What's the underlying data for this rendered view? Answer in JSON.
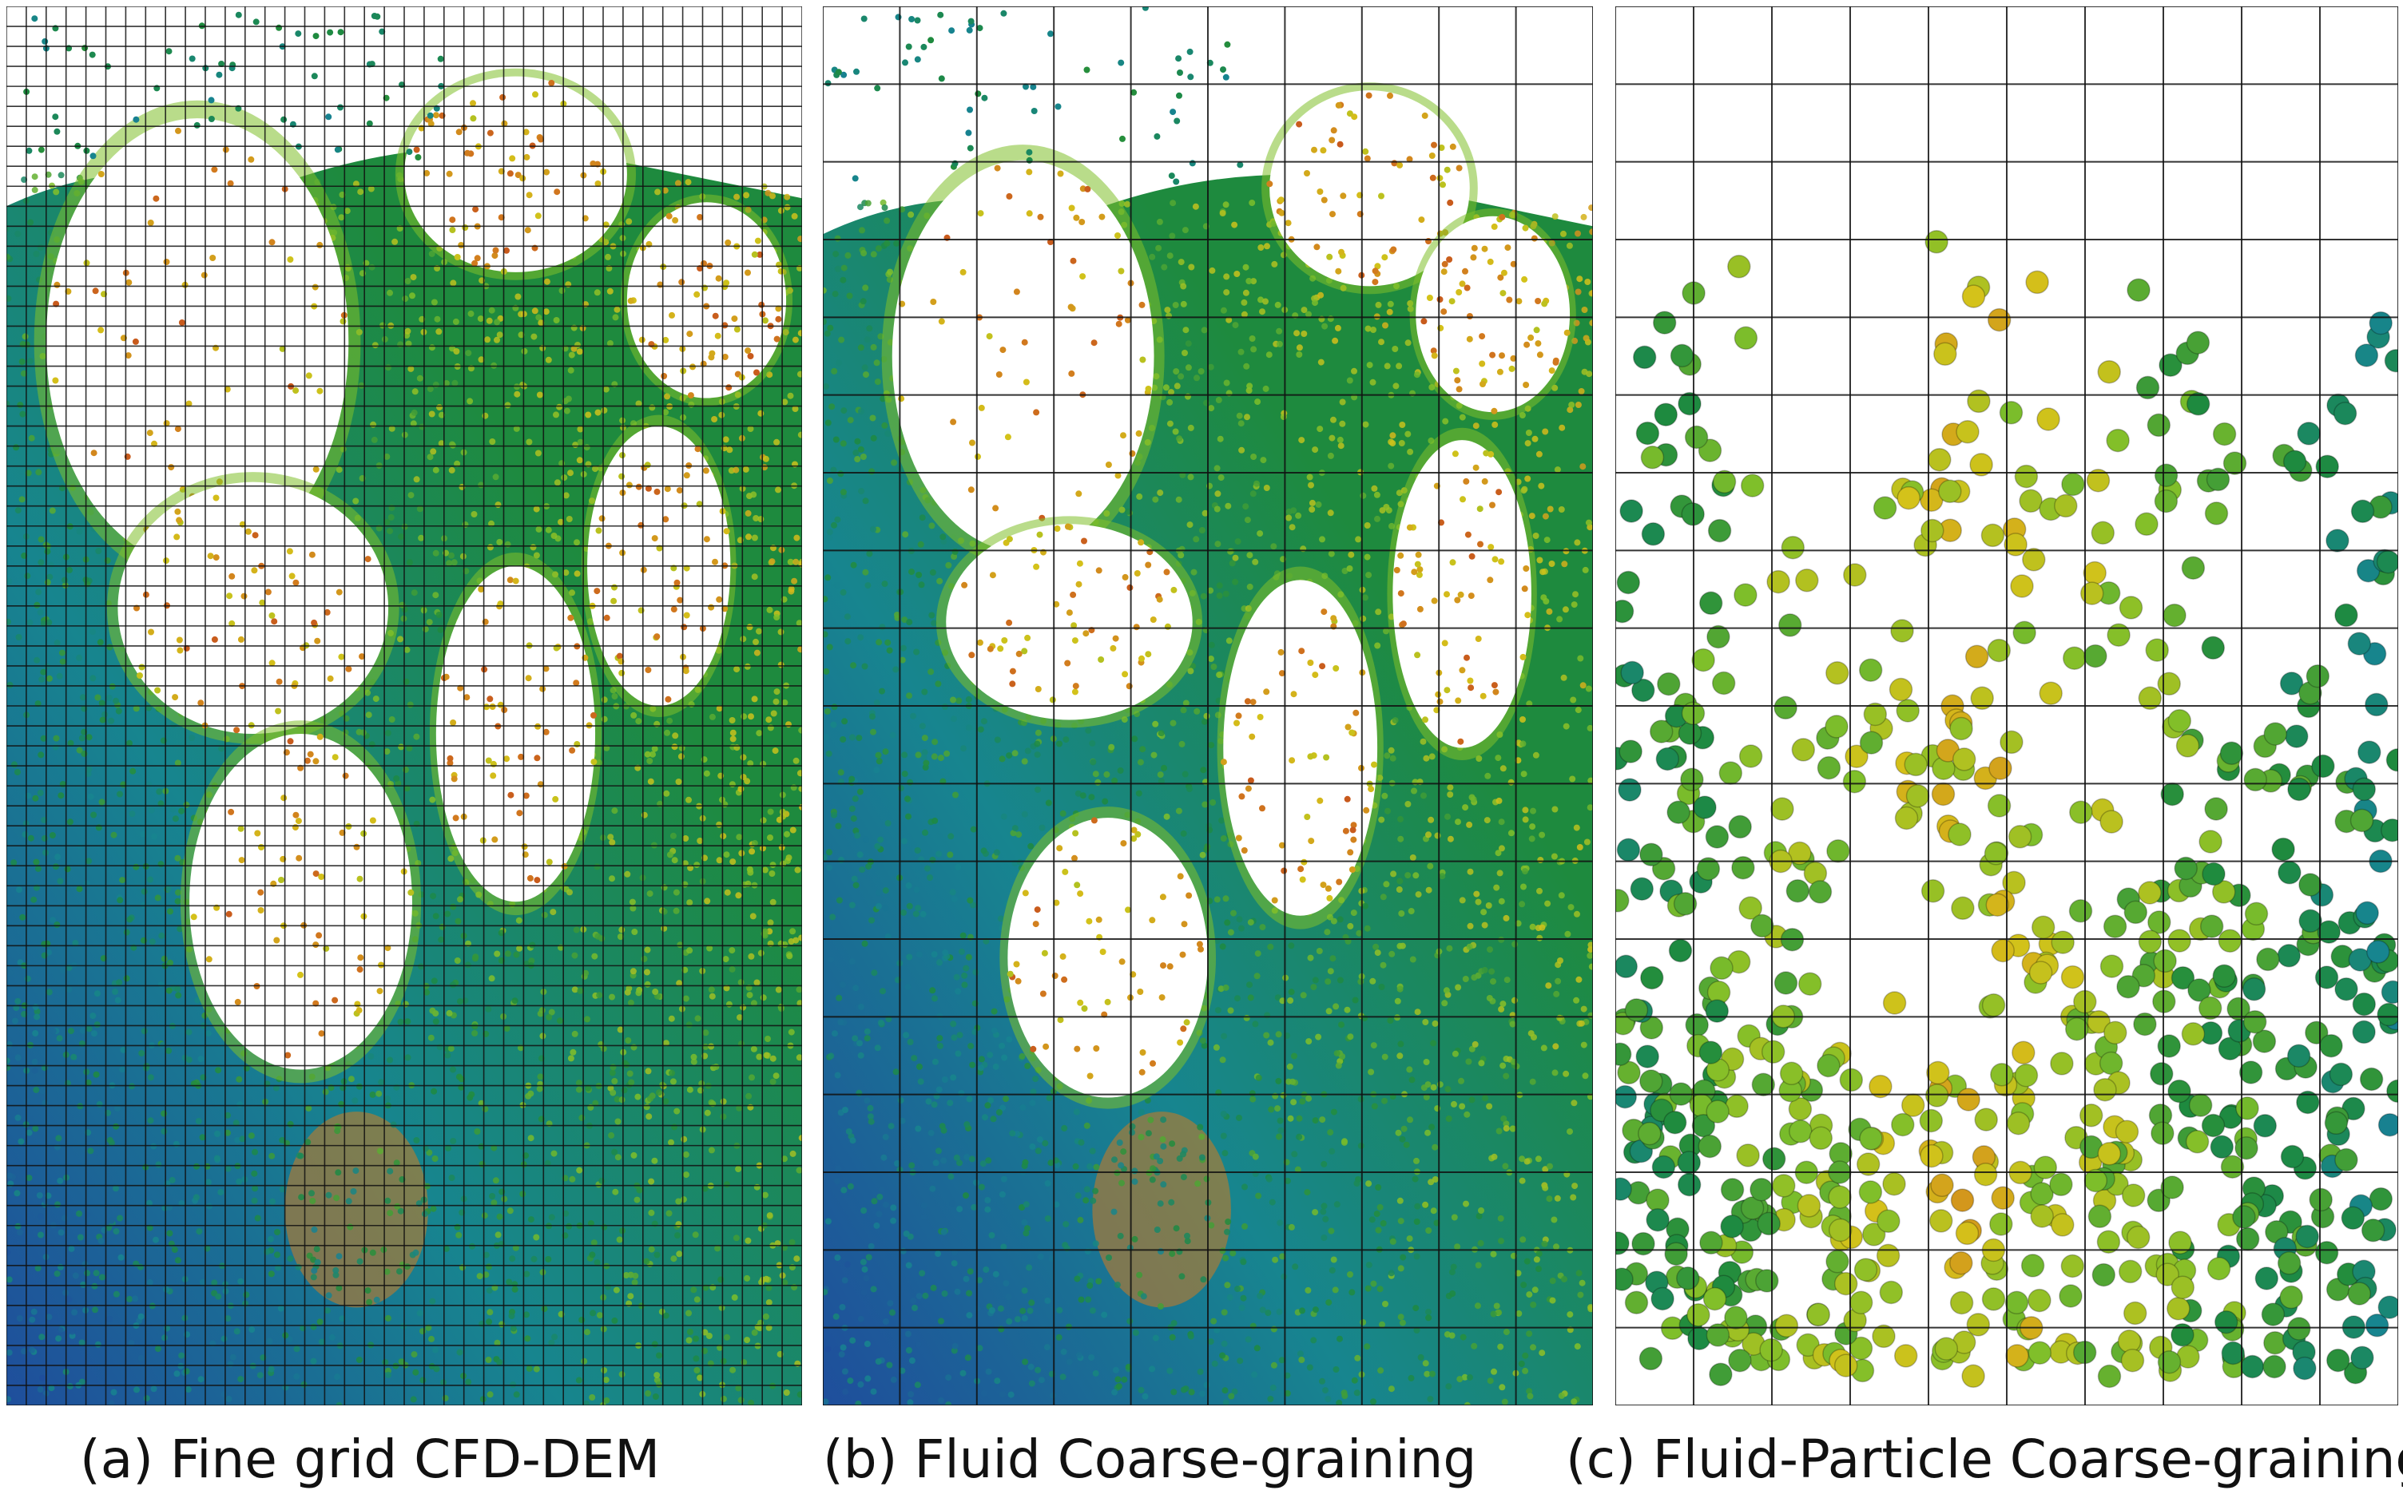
{
  "figure": {
    "panels": [
      {
        "id": "a",
        "caption": "(a) Fine grid CFD-DEM",
        "grid": "fine",
        "particles": "fine"
      },
      {
        "id": "b",
        "caption": "(b) Fluid Coarse-graining",
        "grid": "coarse",
        "particles": "fine"
      },
      {
        "id": "c",
        "caption": "(c) Fluid-Particle Coarse-graining",
        "grid": "coarse",
        "particles": "coarse"
      }
    ],
    "colormap": [
      "#1f4e9c",
      "#17858f",
      "#1e8a3e",
      "#7fbf2a",
      "#d4c21a",
      "#d27a1e",
      "#b8281a"
    ],
    "grid_color": "#111111",
    "background": "#ffffff"
  }
}
